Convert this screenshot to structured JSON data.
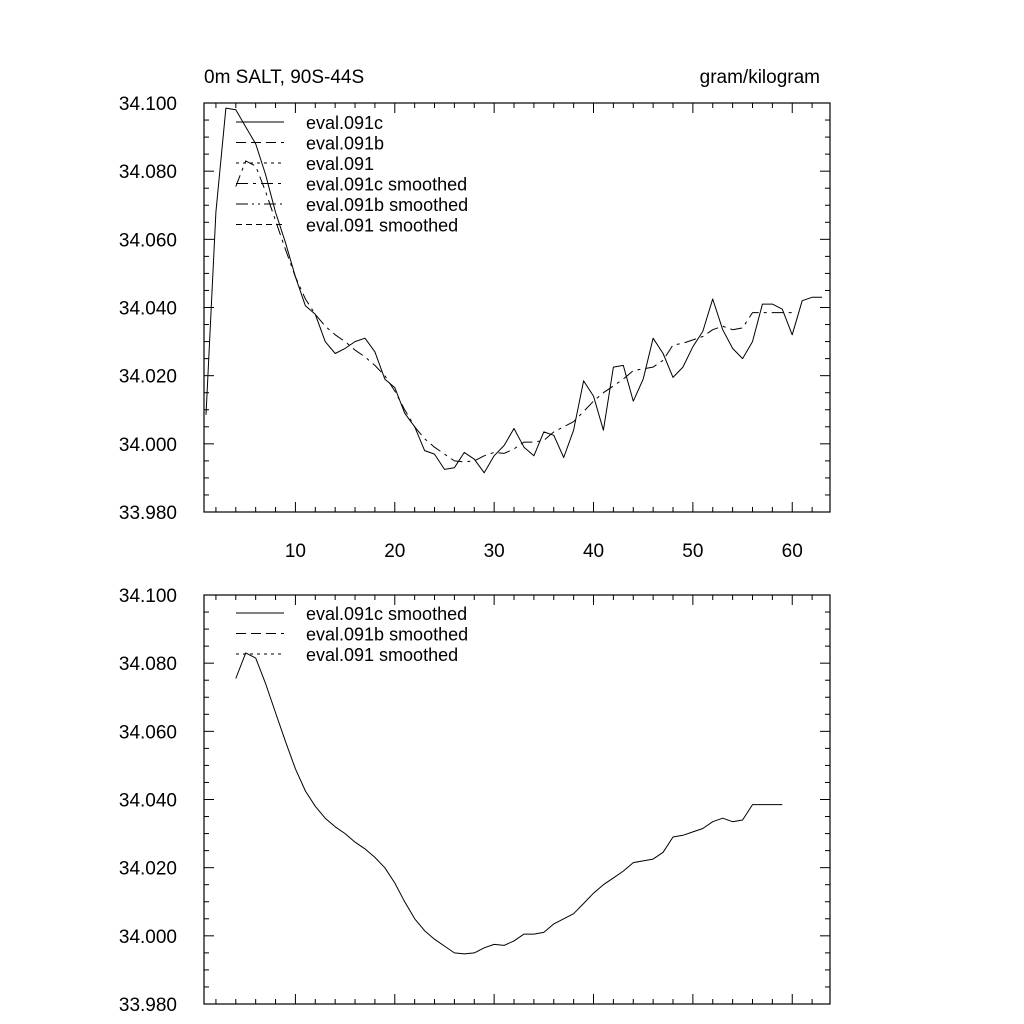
{
  "chart_data": [
    {
      "type": "line",
      "title_left": "0m SALT, 90S-44S",
      "title_right": "gram/kilogram",
      "xlabel": "",
      "ylabel": "",
      "xlim": [
        0.8,
        63.8
      ],
      "ylim": [
        33.98,
        34.1
      ],
      "x_major_ticks": [
        10,
        20,
        30,
        40,
        50,
        60
      ],
      "x_tick_labels": [
        "10",
        "20",
        "30",
        "40",
        "50",
        "60"
      ],
      "y_major_ticks": [
        33.98,
        34.0,
        34.02,
        34.04,
        34.06,
        34.08,
        34.1
      ],
      "y_tick_labels": [
        "33.980",
        "34.000",
        "34.020",
        "34.040",
        "34.060",
        "34.080",
        "34.100"
      ],
      "legend": [
        "eval.091c",
        "eval.091b",
        "eval.091",
        "eval.091c smoothed",
        "eval.091b smoothed",
        "eval.091 smoothed"
      ],
      "legend_dash": [
        "",
        "10,5",
        "3,4",
        "12,5,3,5",
        "12,4,2,4,2,4",
        "6,4"
      ],
      "legend_position": "top-left",
      "series": [
        {
          "name": "eval.091c",
          "dash": "",
          "x": [
            1,
            2,
            3,
            4,
            5,
            6,
            7,
            8,
            9,
            10,
            11,
            12,
            13,
            14,
            15,
            16,
            17,
            18,
            19,
            20,
            21,
            22,
            23,
            24,
            25,
            26,
            27,
            28,
            29,
            30,
            31,
            32,
            33,
            34,
            35,
            36,
            37,
            38,
            39,
            40,
            41,
            42,
            43,
            44,
            45,
            46,
            47,
            48,
            49,
            50,
            51,
            52,
            53,
            54,
            55,
            56,
            57,
            58,
            59,
            60,
            61,
            62,
            63
          ],
          "values": [
            34.0085,
            34.068,
            34.0985,
            34.098,
            34.093,
            34.088,
            34.079,
            34.068,
            34.059,
            34.049,
            34.0405,
            34.038,
            34.03,
            34.0265,
            34.028,
            34.03,
            34.031,
            34.027,
            34.019,
            34.0165,
            34.009,
            34.005,
            33.998,
            33.997,
            33.9925,
            33.993,
            33.9975,
            33.9955,
            33.9915,
            33.9965,
            33.9995,
            34.0045,
            33.999,
            33.9965,
            34.0035,
            34.0025,
            33.996,
            34.004,
            34.0185,
            34.014,
            34.004,
            34.0225,
            34.023,
            34.0125,
            34.019,
            34.031,
            34.0265,
            34.0195,
            34.0225,
            34.0285,
            34.033,
            34.0425,
            34.0335,
            34.028,
            34.025,
            34.03,
            34.041,
            34.041,
            34.0395,
            34.032,
            34.042,
            34.043,
            34.043
          ]
        },
        {
          "name": "eval.091c smoothed",
          "dash": "12,5,3,5",
          "x": [
            4,
            5,
            6,
            7,
            8,
            9,
            10,
            11,
            12,
            13,
            14,
            15,
            16,
            17,
            18,
            19,
            20,
            21,
            22,
            23,
            24,
            25,
            26,
            27,
            28,
            29,
            30,
            31,
            32,
            33,
            34,
            35,
            36,
            37,
            38,
            39,
            40,
            41,
            42,
            43,
            44,
            45,
            46,
            47,
            48,
            49,
            50,
            51,
            52,
            53,
            54,
            55,
            56,
            57,
            58,
            59,
            60
          ],
          "values": [
            34.0755,
            34.083,
            34.0815,
            34.074,
            34.0655,
            34.057,
            34.049,
            34.0425,
            34.038,
            34.0345,
            34.032,
            34.03,
            34.0275,
            34.0255,
            34.023,
            34.02,
            34.0155,
            34.01,
            34.005,
            34.0015,
            33.999,
            33.997,
            33.995,
            33.9947,
            33.995,
            33.9965,
            33.9975,
            33.9972,
            33.9985,
            34.0005,
            34.0005,
            34.001,
            34.0035,
            34.005,
            34.0065,
            34.0095,
            34.0125,
            34.015,
            34.017,
            34.019,
            34.0215,
            34.022,
            34.0225,
            34.0245,
            34.029,
            34.0295,
            34.0305,
            34.0315,
            34.0335,
            34.0345,
            34.0335,
            34.034,
            34.0385,
            34.0385,
            34.0385,
            34.0385,
            34.0385
          ]
        }
      ]
    },
    {
      "type": "line",
      "title_left": "",
      "title_right": "",
      "xlabel": "",
      "ylabel": "",
      "xlim": [
        0.8,
        63.8
      ],
      "ylim": [
        33.98,
        34.1
      ],
      "x_major_ticks": [
        10,
        20,
        30,
        40,
        50,
        60
      ],
      "x_tick_labels": [],
      "y_major_ticks": [
        33.98,
        34.0,
        34.02,
        34.04,
        34.06,
        34.08,
        34.1
      ],
      "y_tick_labels": [
        "33.980",
        "34.000",
        "34.020",
        "34.040",
        "34.060",
        "34.080",
        "34.100"
      ],
      "legend": [
        "eval.091c smoothed",
        "eval.091b smoothed",
        "eval.091 smoothed"
      ],
      "legend_dash": [
        "",
        "10,5",
        "3,4"
      ],
      "legend_position": "top-left",
      "series": [
        {
          "name": "eval.091c smoothed",
          "dash": "",
          "x": [
            4,
            5,
            6,
            7,
            8,
            9,
            10,
            11,
            12,
            13,
            14,
            15,
            16,
            17,
            18,
            19,
            20,
            21,
            22,
            23,
            24,
            25,
            26,
            27,
            28,
            29,
            30,
            31,
            32,
            33,
            34,
            35,
            36,
            37,
            38,
            39,
            40,
            41,
            42,
            43,
            44,
            45,
            46,
            47,
            48,
            49,
            50,
            51,
            52,
            53,
            54,
            55,
            56,
            57,
            58,
            59
          ],
          "values": [
            34.0755,
            34.083,
            34.0815,
            34.074,
            34.0655,
            34.057,
            34.049,
            34.0425,
            34.038,
            34.0345,
            34.032,
            34.03,
            34.0275,
            34.0255,
            34.023,
            34.02,
            34.0155,
            34.01,
            34.005,
            34.0015,
            33.999,
            33.997,
            33.995,
            33.9947,
            33.995,
            33.9965,
            33.9975,
            33.9972,
            33.9985,
            34.0005,
            34.0005,
            34.001,
            34.0035,
            34.005,
            34.0065,
            34.0095,
            34.0125,
            34.015,
            34.017,
            34.019,
            34.0215,
            34.022,
            34.0225,
            34.0245,
            34.029,
            34.0295,
            34.0305,
            34.0315,
            34.0335,
            34.0345,
            34.0335,
            34.034,
            34.0385,
            34.0385,
            34.0385,
            34.0385
          ]
        }
      ]
    }
  ]
}
